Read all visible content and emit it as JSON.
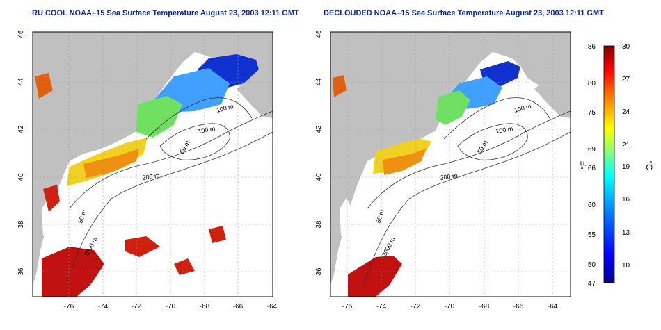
{
  "panels": [
    {
      "title": "RU COOL NOAA–15 Sea Surface Temperature August 23, 2003 12:11 GMT",
      "x_ticks": [
        "-76",
        "-74",
        "-72",
        "-70",
        "-68",
        "-66",
        "-64"
      ],
      "y_ticks": [
        "46",
        "44",
        "42",
        "40",
        "38",
        "36"
      ],
      "contour_labels": [
        "100 m",
        "100 m",
        "50 m",
        "200 m",
        "50 m",
        "2000 m"
      ]
    },
    {
      "title": "DECLOUDED NOAA–15 Sea Surface Temperature August 23, 2003 12:11 GMT",
      "x_ticks": [
        "-76",
        "-74",
        "-72",
        "-70",
        "-68",
        "-66",
        "-64"
      ],
      "y_ticks": [
        "46",
        "44",
        "42",
        "40",
        "38",
        "36"
      ],
      "contour_labels": [
        "100 m",
        "100 m",
        "50 m",
        "200 m",
        "50 m",
        "2000 m"
      ]
    }
  ],
  "colorbar": {
    "label_f": "°F",
    "label_c": "°C",
    "f_ticks": [
      "86",
      "80",
      "75",
      "69",
      "66",
      "60",
      "55",
      "50",
      "47"
    ],
    "c_ticks": [
      "30",
      "27",
      "24",
      "21",
      "19",
      "16",
      "13",
      "10"
    ],
    "colors": [
      "#00008f",
      "#0000ff",
      "#0080ff",
      "#00ffff",
      "#80ff80",
      "#ffff00",
      "#ff8000",
      "#ff0000",
      "#800000"
    ]
  },
  "colors": {
    "land": "#c0c0c0",
    "title": "#0b2a9e",
    "contour": "#333333",
    "grid": "#999999"
  }
}
